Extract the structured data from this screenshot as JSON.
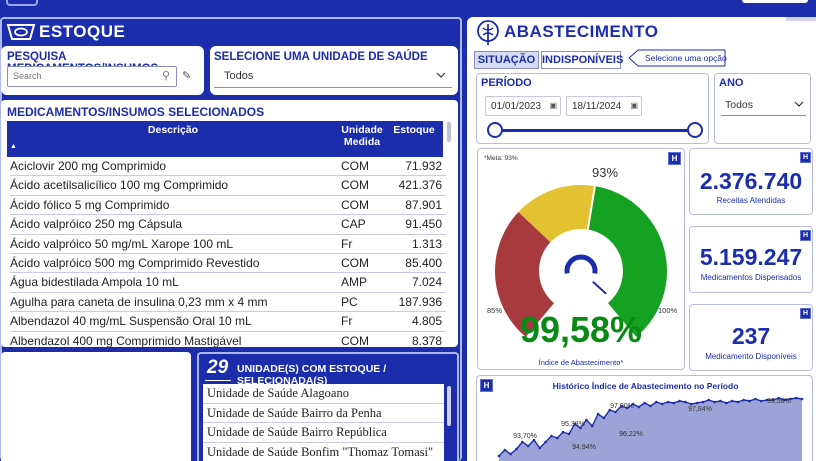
{
  "estoque": {
    "title": "ESTOQUE",
    "search_label": "PESQUISA MEDICAMENTOS/INSUMOS",
    "search_placeholder": "Search",
    "unit_select_label": "SELECIONE UMA UNIDADE DE SAÚDE",
    "unit_select_value": "Todos",
    "selected_title": "MEDICAMENTOS/INSUMOS SELECIONADOS",
    "columns": [
      "Descrição",
      "Unidade Medida",
      "Estoque"
    ],
    "rows": [
      {
        "desc": "Aciclovir 200 mg Comprimido",
        "unit": "COM",
        "stock": "71.932"
      },
      {
        "desc": "Ácido acetilsalicílico 100 mg Comprimido",
        "unit": "COM",
        "stock": "421.376"
      },
      {
        "desc": "Ácido fólico 5 mg Comprimido",
        "unit": "COM",
        "stock": "87.901"
      },
      {
        "desc": "Ácido valpróico 250 mg Cápsula",
        "unit": "CAP",
        "stock": "91.450"
      },
      {
        "desc": "Ácido valpróico 50 mg/mL Xarope 100 mL",
        "unit": "Fr",
        "stock": "1.313"
      },
      {
        "desc": "Ácido valpróico 500 mg Comprimido Revestido",
        "unit": "COM",
        "stock": "85.400"
      },
      {
        "desc": "Água bidestilada Ampola 10 mL",
        "unit": "AMP",
        "stock": "7.024"
      },
      {
        "desc": "Agulha para caneta de insulina 0,23 mm x 4 mm",
        "unit": "PC",
        "stock": "187.936"
      },
      {
        "desc": "Albendazol 40 mg/mL Suspensão Oral 10 mL",
        "unit": "Fr",
        "stock": "4.805"
      },
      {
        "desc": "Albendazol 400 mg Comprimido Mastigável",
        "unit": "COM",
        "stock": "8.378"
      }
    ],
    "units_count": "29",
    "units_title": "UNIDADE(S) COM ESTOQUE / SELECIONADA(S)",
    "units": [
      "Unidade de Saúde Alagoano",
      "Unidade de Saúde Bairro da Penha",
      "Unidade de Saúde Bairro República",
      "Unidade de Saúde Bonfim \"Thomaz Tomasi\""
    ]
  },
  "abastecimento": {
    "title": "ABASTECIMENTO",
    "tabs": [
      "SITUAÇÃO",
      "INDISPONÍVEIS"
    ],
    "tab_hint": "Selecione uma opção",
    "periodo_label": "PERÍODO",
    "date_start": "01/01/2023",
    "date_end": "18/11/2024",
    "ano_label": "ANO",
    "ano_value": "Todos",
    "gauge": {
      "meta_label": "*Meta: 93%",
      "target_label": "93%",
      "min_label": "85%",
      "max_label": "100%",
      "value_text": "99,58%",
      "value": 99.58,
      "min": 85,
      "max": 100,
      "caption": "Índice de Abastecimento*",
      "colors": {
        "red": "#a63a3e",
        "yellow": "#e3c232",
        "green": "#15a121",
        "needle": "#1c2dab",
        "value": "#0a8a14"
      }
    },
    "kpis": [
      {
        "value": "2.376.740",
        "label": "Receitas Atendidas"
      },
      {
        "value": "5.159.247",
        "label": "Medicamentos Dispensados"
      },
      {
        "value": "237",
        "label": "Medicamento Disponíveis"
      }
    ],
    "badge": "H",
    "history_title": "Histórico Índice de Abastecimento no Período",
    "history_labels": [
      "93,70%",
      "95,38%",
      "94,94%",
      "97,90%",
      "96,22%",
      "97,84%",
      "99,58%"
    ]
  }
}
